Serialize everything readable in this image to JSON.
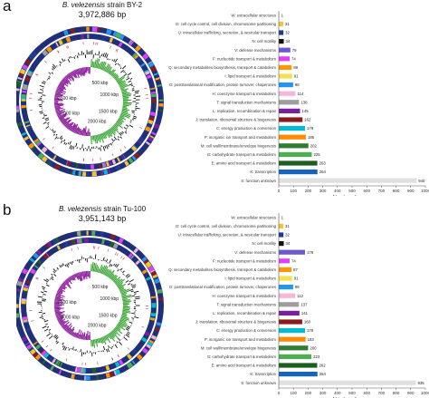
{
  "panels": [
    {
      "letter": "a",
      "strain_prefix": "B. velezensis",
      "strain_suffix": "strain BY-2",
      "genome_size": "3,972,886 bp",
      "ring_labels": [
        "500 kbp",
        "1000 kbp",
        "1500 kbp",
        "2000 kbp",
        "3500 kbp",
        "3000 kbp"
      ],
      "x_axis_title": "Number of genes",
      "x_ticks": [
        "0",
        "100",
        "200",
        "300",
        "400",
        "500",
        "600",
        "700",
        "800",
        "900",
        "1000"
      ]
    },
    {
      "letter": "b",
      "strain_prefix": "B. velezensis",
      "strain_suffix": "strain Tu-100",
      "genome_size": "3,951,143 bp",
      "ring_labels": [
        "500 kbp",
        "1000 kbp",
        "1500 kbp",
        "2000 kbp",
        "3500 kbp",
        "3000 kbp"
      ],
      "x_axis_title": "Number of genes",
      "x_ticks": [
        "0",
        "100",
        "200",
        "300",
        "400",
        "500",
        "600",
        "700",
        "800",
        "900",
        "1000"
      ]
    }
  ],
  "chart_data": [
    {
      "type": "bar",
      "orientation": "horizontal",
      "categories": [
        "W: extracellular structures",
        "D: cell cycle control, cell division, chromosome partitioning",
        "U: intracellular trafficking, secretion, & vesicular transport",
        "N: cell motility",
        "V: defense mechanisms",
        "F: nucleotide transport & metabolism",
        "Q: secondary metabolites biosynthesis, transport & catabolism",
        "I: lipid transport & metabolism",
        "O: posttranslational modification, protein turnover, chaperones",
        "H: coenzyme transport & metabolism",
        "T: signal transduction mechanisms",
        "L: replication, recombination & repair",
        "J: translation, ribosomal structure & biogenesis",
        "C: energy production & conversion",
        "P: inorganic ion transport and metabolism",
        "M: cell wall/membrane/envelope biogenesis",
        "G: carbohydrate transport & metabolism",
        "E: amino acid transport & metabolism",
        "K: transcription",
        "S: function unknown"
      ],
      "values": [
        1,
        31,
        32,
        34,
        79,
        74,
        88,
        91,
        98,
        114,
        138,
        145,
        162,
        179,
        185,
        202,
        225,
        263,
        264,
        940
      ],
      "colors": [
        "#d9d9d9",
        "#f4c430",
        "#1f3a93",
        "#101010",
        "#6a5acd",
        "#e040fb",
        "#ff9800",
        "#f4e04d",
        "#2196f3",
        "#f6b6d8",
        "#9e9e9e",
        "#7b1fa2",
        "#8b1a1a",
        "#00bcd4",
        "#ff8c00",
        "#2e7d32",
        "#4caf50",
        "#1b5e20",
        "#1565c0",
        "#e0e0e0"
      ],
      "xlabel": "Number of genes",
      "xlim": [
        0,
        1000
      ]
    },
    {
      "type": "bar",
      "orientation": "horizontal",
      "categories": [
        "W: extracellular structures",
        "D: cell cycle control, cell division, chromosome partitioning",
        "U: intracellular trafficking, secretion, & vesicular transport",
        "N: cell motility",
        "V: defense mechanisms",
        "F: nucleotide transport & metabolism",
        "Q: secondary metabolites biosynthesis, transport & catabolism",
        "I: lipid transport & metabolism",
        "O: posttranslational modification, protein turnover, chaperones",
        "H: coenzyme transport & metabolism",
        "T: signal transduction mechanisms",
        "L: replication, recombination & repair",
        "J: translation, ribosomal structure & biogenesis",
        "C: energy production & conversion",
        "P: inorganic ion transport and metabolism",
        "M: cell wall/membrane/envelope biogenesis",
        "G: carbohydrate transport & metabolism",
        "E: amino acid transport & metabolism",
        "K: transcription",
        "S: function unknown"
      ],
      "values": [
        1,
        31,
        32,
        34,
        179,
        74,
        87,
        91,
        98,
        112,
        137,
        141,
        160,
        179,
        183,
        200,
        223,
        262,
        264,
        935
      ],
      "colors": [
        "#d9d9d9",
        "#f4c430",
        "#1f3a93",
        "#101010",
        "#6a5acd",
        "#e040fb",
        "#ff9800",
        "#f4e04d",
        "#2196f3",
        "#f6b6d8",
        "#9e9e9e",
        "#7b1fa2",
        "#8b1a1a",
        "#00bcd4",
        "#ff8c00",
        "#2e7d32",
        "#4caf50",
        "#1b5e20",
        "#1565c0",
        "#e0e0e0"
      ],
      "xlabel": "Number of genes",
      "xlim": [
        0,
        1000
      ]
    }
  ]
}
